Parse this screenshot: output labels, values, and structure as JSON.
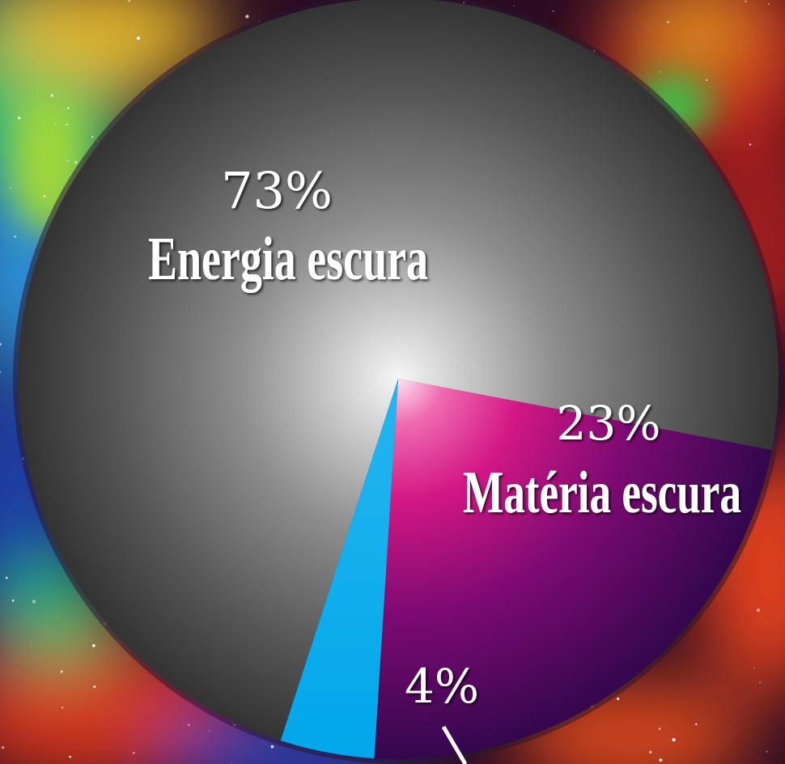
{
  "chart_data": {
    "type": "pie",
    "slices": [
      {
        "key": "energy",
        "label": "Energia escura",
        "value_label": "73%",
        "value": 73,
        "color": "#4a4a4a"
      },
      {
        "key": "matter",
        "label": "Matéria escura",
        "value_label": "23%",
        "value": 23,
        "color": "#c0187e"
      },
      {
        "key": "ordinary",
        "label": "",
        "value_label": "4%",
        "value": 4,
        "color": "#00aeef"
      }
    ],
    "legend": "none",
    "background": "nebula"
  }
}
